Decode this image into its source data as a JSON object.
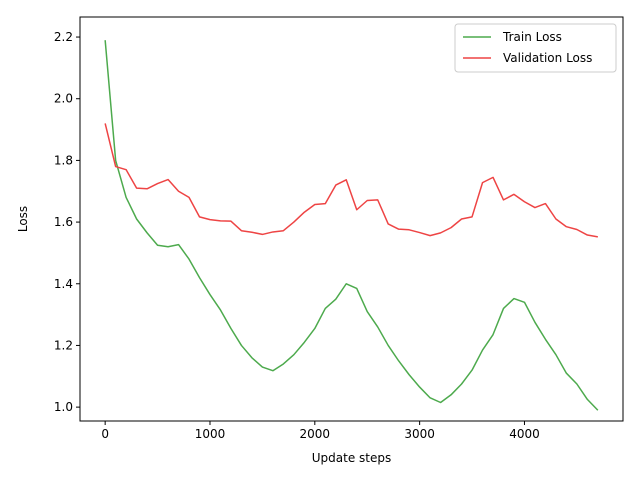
{
  "chart_data": {
    "type": "line",
    "title": "",
    "xlabel": "Update steps",
    "ylabel": "Loss",
    "xlim": [
      -240,
      4940
    ],
    "ylim": [
      0.955,
      2.265
    ],
    "xticks": [
      0,
      1000,
      2000,
      3000,
      4000
    ],
    "xtick_labels": [
      "0",
      "1000",
      "2000",
      "3000",
      "4000"
    ],
    "yticks": [
      1.0,
      1.2,
      1.4,
      1.6,
      1.8,
      2.0,
      2.2
    ],
    "ytick_labels": [
      "1.0",
      "1.2",
      "1.4",
      "1.6",
      "1.8",
      "2.0",
      "2.2"
    ],
    "grid": false,
    "legend_position": "top-right",
    "x": [
      0,
      100,
      200,
      300,
      400,
      500,
      600,
      700,
      800,
      900,
      1000,
      1100,
      1200,
      1300,
      1400,
      1500,
      1600,
      1700,
      1800,
      1900,
      2000,
      2100,
      2200,
      2300,
      2400,
      2500,
      2600,
      2700,
      2800,
      2900,
      3000,
      3100,
      3200,
      3300,
      3400,
      3500,
      3600,
      3700,
      3800,
      3900,
      4000,
      4100,
      4200,
      4300,
      4400,
      4500,
      4600,
      4700
    ],
    "series": [
      {
        "name": "Train Loss",
        "color": "#4daa4d",
        "values": [
          2.19,
          1.8,
          1.68,
          1.61,
          1.565,
          1.525,
          1.52,
          1.527,
          1.48,
          1.42,
          1.365,
          1.315,
          1.255,
          1.2,
          1.16,
          1.13,
          1.118,
          1.14,
          1.17,
          1.21,
          1.255,
          1.32,
          1.35,
          1.4,
          1.385,
          1.31,
          1.26,
          1.2,
          1.15,
          1.105,
          1.065,
          1.03,
          1.015,
          1.04,
          1.075,
          1.12,
          1.185,
          1.235,
          1.32,
          1.352,
          1.34,
          1.275,
          1.22,
          1.17,
          1.11,
          1.075,
          1.025,
          0.99
        ]
      },
      {
        "name": "Validation Loss",
        "color": "#ee4444",
        "values": [
          1.92,
          1.78,
          1.77,
          1.71,
          1.708,
          1.725,
          1.738,
          1.7,
          1.68,
          1.617,
          1.608,
          1.604,
          1.603,
          1.572,
          1.567,
          1.56,
          1.568,
          1.572,
          1.6,
          1.632,
          1.657,
          1.66,
          1.72,
          1.737,
          1.64,
          1.67,
          1.672,
          1.594,
          1.577,
          1.575,
          1.566,
          1.556,
          1.565,
          1.582,
          1.61,
          1.617,
          1.728,
          1.745,
          1.672,
          1.69,
          1.666,
          1.647,
          1.66,
          1.61,
          1.585,
          1.576,
          1.558,
          1.552
        ]
      }
    ]
  }
}
